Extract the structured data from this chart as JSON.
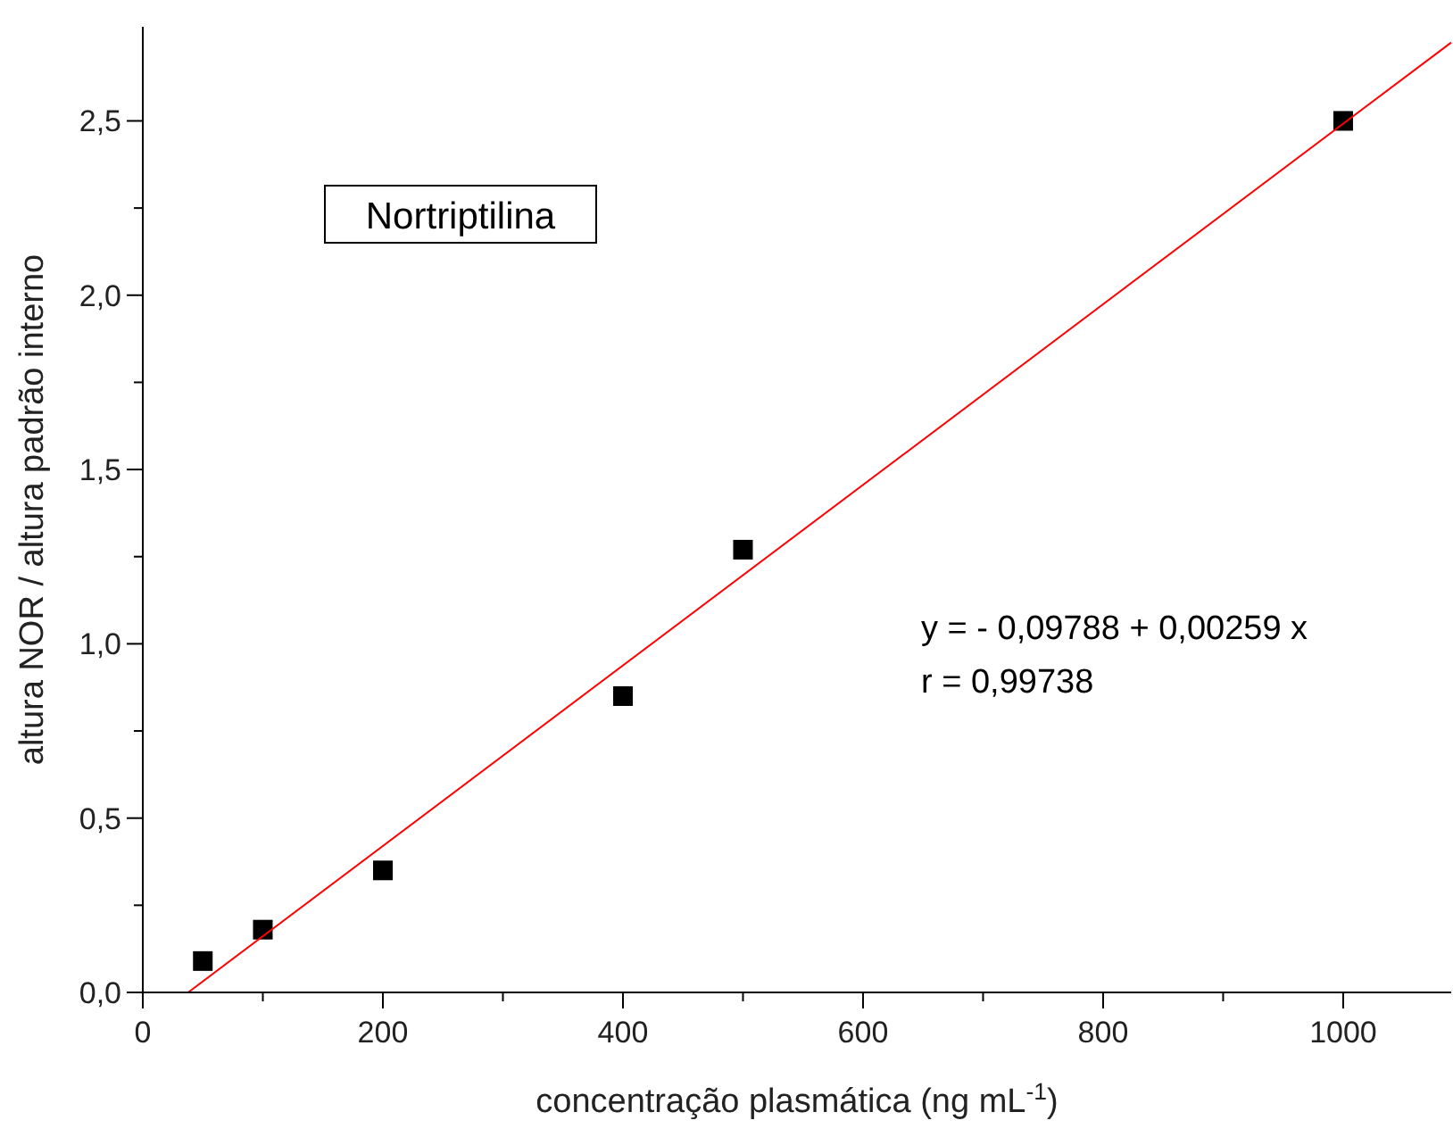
{
  "chart_data": {
    "type": "scatter",
    "xlabel": "concentração plasmática (ng mL$^{-1}$)",
    "ylabel": "altura NOR / altura padrão interno",
    "xlim": [
      0,
      1090
    ],
    "ylim": [
      0,
      2.77
    ],
    "xticks": [
      0,
      {
        "value": 100,
        "label": null
      },
      200,
      {
        "value": 300,
        "label": null
      },
      400,
      {
        "value": 500,
        "label": null
      },
      600,
      {
        "value": 700,
        "label": null
      },
      800,
      {
        "value": 900,
        "label": null
      },
      1000
    ],
    "yticks": [
      {
        "value": 0,
        "label": "0,0"
      },
      {
        "value": 0.25,
        "label": null
      },
      {
        "value": 0.5,
        "label": "0,5"
      },
      {
        "value": 0.75,
        "label": null
      },
      {
        "value": 1,
        "label": "1,0"
      },
      {
        "value": 1.25,
        "label": null
      },
      {
        "value": 1.5,
        "label": "1,5"
      },
      {
        "value": 1.75,
        "label": null
      },
      {
        "value": 2,
        "label": "2,0"
      },
      {
        "value": 2.25,
        "label": null
      },
      {
        "value": 2.5,
        "label": "2,5"
      }
    ],
    "grid": false,
    "series": [
      {
        "marker": "square",
        "color": "#000000",
        "x": [
          50,
          100,
          200,
          400,
          500,
          1000
        ],
        "values": [
          0.09,
          0.18,
          0.35,
          0.85,
          1.27,
          2.5
        ]
      },
      {
        "type": "line",
        "color": "#ff0000",
        "x": [
          37.8,
          1090
        ],
        "values": [
          0,
          2.725
        ]
      }
    ],
    "annotations": [
      "Nortriptilina",
      "y = - 0,09788 + 0,00259 x",
      "r = 0,99738"
    ]
  }
}
